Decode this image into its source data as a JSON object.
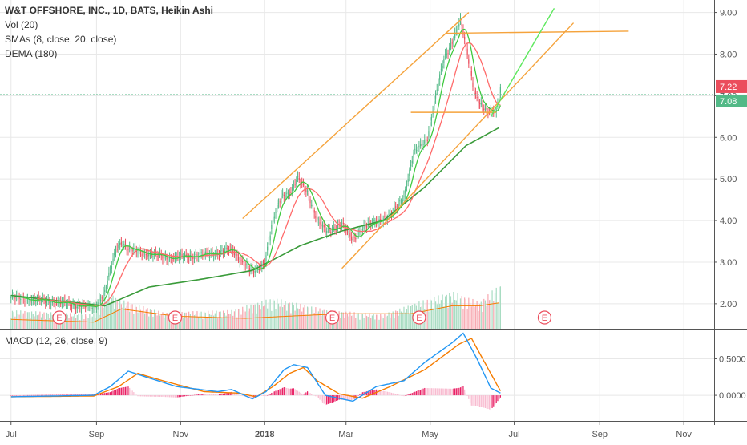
{
  "chart_data": {
    "type": "candlestick",
    "title": "W&T OFFSHORE, INC., 1D, BATS, Heikin Ashi",
    "indicators": [
      "Vol (20)",
      "SMAs (8, close, 20, close)",
      "DEMA (180)"
    ],
    "last_price": "7.22",
    "sma_value": "7.08",
    "y_ticks": [
      "9.00",
      "8.00",
      "7.00",
      "6.00",
      "5.00",
      "4.00",
      "3.00",
      "2.00"
    ],
    "ylim": [
      1.4,
      9.3
    ],
    "x_labels": [
      {
        "label": "Jul",
        "day": 0
      },
      {
        "label": "Sep",
        "day": 62
      },
      {
        "label": "Nov",
        "day": 123
      },
      {
        "label": "2018",
        "day": 184
      },
      {
        "label": "Mar",
        "day": 243
      },
      {
        "label": "May",
        "day": 304
      },
      {
        "label": "Jul",
        "day": 365
      },
      {
        "label": "Sep",
        "day": 427
      },
      {
        "label": "Nov",
        "day": 488
      }
    ],
    "xlim": [
      -8,
      510
    ],
    "last_data_day": 355,
    "price_path": [
      [
        0,
        2.15
      ],
      [
        30,
        2.05
      ],
      [
        60,
        1.9
      ],
      [
        68,
        2.3
      ],
      [
        76,
        3.3
      ],
      [
        80,
        3.5
      ],
      [
        85,
        3.3
      ],
      [
        100,
        3.2
      ],
      [
        115,
        3.1
      ],
      [
        130,
        3.15
      ],
      [
        145,
        3.2
      ],
      [
        160,
        3.3
      ],
      [
        168,
        3.0
      ],
      [
        175,
        2.75
      ],
      [
        184,
        3.0
      ],
      [
        190,
        4.0
      ],
      [
        196,
        4.6
      ],
      [
        203,
        4.7
      ],
      [
        208,
        5.0
      ],
      [
        215,
        4.7
      ],
      [
        222,
        4.0
      ],
      [
        228,
        3.75
      ],
      [
        240,
        3.9
      ],
      [
        248,
        3.55
      ],
      [
        255,
        3.8
      ],
      [
        265,
        4.0
      ],
      [
        275,
        4.1
      ],
      [
        285,
        4.6
      ],
      [
        292,
        5.6
      ],
      [
        302,
        6.0
      ],
      [
        308,
        7.0
      ],
      [
        314,
        7.9
      ],
      [
        320,
        8.3
      ],
      [
        326,
        8.8
      ],
      [
        331,
        8.0
      ],
      [
        336,
        7.1
      ],
      [
        340,
        6.8
      ],
      [
        345,
        6.6
      ],
      [
        352,
        6.65
      ],
      [
        355,
        7.22
      ]
    ],
    "series": [
      {
        "name": "SMA (8)",
        "color": "#3fc93f"
      },
      {
        "name": "SMA (20)",
        "color": "#ff6b6b"
      },
      {
        "name": "DEMA (180)",
        "color": "#3a9b3a"
      },
      {
        "name": "Vol MA (20)",
        "color": "#f08c3c"
      }
    ],
    "dema_path": [
      [
        0,
        2.2
      ],
      [
        40,
        2.05
      ],
      [
        68,
        1.95
      ],
      [
        100,
        2.4
      ],
      [
        140,
        2.6
      ],
      [
        175,
        2.8
      ],
      [
        210,
        3.4
      ],
      [
        240,
        3.75
      ],
      [
        270,
        4.0
      ],
      [
        300,
        4.8
      ],
      [
        330,
        5.8
      ],
      [
        355,
        6.25
      ]
    ],
    "trendlines": [
      {
        "color": "#f5a33c",
        "points": [
          [
            168,
            4.05
          ],
          [
            332,
            9.0
          ]
        ]
      },
      {
        "color": "#f5a33c",
        "points": [
          [
            240,
            2.85
          ],
          [
            408,
            8.75
          ]
        ]
      },
      {
        "color": "#f5a33c",
        "points": [
          [
            315,
            8.5
          ],
          [
            448,
            8.55
          ]
        ]
      },
      {
        "color": "#f5a33c",
        "points": [
          [
            290,
            6.6
          ],
          [
            352,
            6.6
          ]
        ]
      },
      {
        "color": "#5ee85e",
        "points": [
          [
            348,
            6.5
          ],
          [
            394,
            9.1
          ]
        ]
      }
    ],
    "volume": {
      "ylim": [
        0,
        3.0
      ],
      "levels": [
        [
          0,
          0.9
        ],
        [
          60,
          0.7
        ],
        [
          70,
          1.8
        ],
        [
          80,
          1.4
        ],
        [
          110,
          0.8
        ],
        [
          160,
          0.9
        ],
        [
          190,
          1.5
        ],
        [
          230,
          0.9
        ],
        [
          270,
          0.7
        ],
        [
          300,
          1.4
        ],
        [
          320,
          1.8
        ],
        [
          340,
          1.3
        ],
        [
          355,
          2.2
        ]
      ],
      "ma_path": [
        [
          0,
          0.45
        ],
        [
          60,
          0.32
        ],
        [
          80,
          0.95
        ],
        [
          120,
          0.6
        ],
        [
          170,
          0.5
        ],
        [
          200,
          0.6
        ],
        [
          240,
          0.72
        ],
        [
          290,
          0.72
        ],
        [
          320,
          1.1
        ],
        [
          340,
          1.1
        ],
        [
          355,
          1.25
        ]
      ]
    },
    "earnings_events": [
      {
        "label": "E",
        "day": 35
      },
      {
        "label": "E",
        "day": 119
      },
      {
        "label": "E",
        "day": 233
      },
      {
        "label": "E",
        "day": 296
      },
      {
        "label": "E",
        "day": 387
      }
    ],
    "macd": {
      "label": "MACD (12, 26, close, 9)",
      "y_ticks": [
        "0.5000",
        "0.0000"
      ],
      "ylim": [
        -0.35,
        0.9
      ],
      "macd_path": [
        [
          0,
          -0.02
        ],
        [
          60,
          0.0
        ],
        [
          72,
          0.12
        ],
        [
          85,
          0.33
        ],
        [
          98,
          0.25
        ],
        [
          120,
          0.12
        ],
        [
          150,
          0.05
        ],
        [
          160,
          0.08
        ],
        [
          175,
          -0.05
        ],
        [
          185,
          0.05
        ],
        [
          198,
          0.35
        ],
        [
          205,
          0.42
        ],
        [
          215,
          0.38
        ],
        [
          228,
          0.0
        ],
        [
          240,
          -0.05
        ],
        [
          248,
          -0.08
        ],
        [
          265,
          0.12
        ],
        [
          285,
          0.2
        ],
        [
          300,
          0.45
        ],
        [
          320,
          0.72
        ],
        [
          328,
          0.85
        ],
        [
          338,
          0.5
        ],
        [
          348,
          0.1
        ],
        [
          355,
          0.03
        ]
      ],
      "signal_path": [
        [
          0,
          -0.02
        ],
        [
          60,
          -0.01
        ],
        [
          78,
          0.12
        ],
        [
          92,
          0.3
        ],
        [
          110,
          0.2
        ],
        [
          140,
          0.05
        ],
        [
          165,
          0.03
        ],
        [
          178,
          -0.02
        ],
        [
          190,
          0.12
        ],
        [
          202,
          0.3
        ],
        [
          212,
          0.38
        ],
        [
          222,
          0.2
        ],
        [
          238,
          0.02
        ],
        [
          255,
          -0.04
        ],
        [
          275,
          0.12
        ],
        [
          300,
          0.35
        ],
        [
          325,
          0.7
        ],
        [
          334,
          0.78
        ],
        [
          345,
          0.4
        ],
        [
          355,
          0.06
        ]
      ]
    },
    "colors": {
      "up": "#53b987",
      "down": "#eb4d5c",
      "up_vol": "#a8dcc2",
      "down_vol": "#f7a8b0",
      "price_tag": "#eb4d5c",
      "sma_tag": "#53b987",
      "macd": "#2196f3",
      "signal": "#f57c00",
      "hist_up": "#e91e63",
      "grid": "#e8e8e8",
      "axis_text": "#555555"
    }
  }
}
